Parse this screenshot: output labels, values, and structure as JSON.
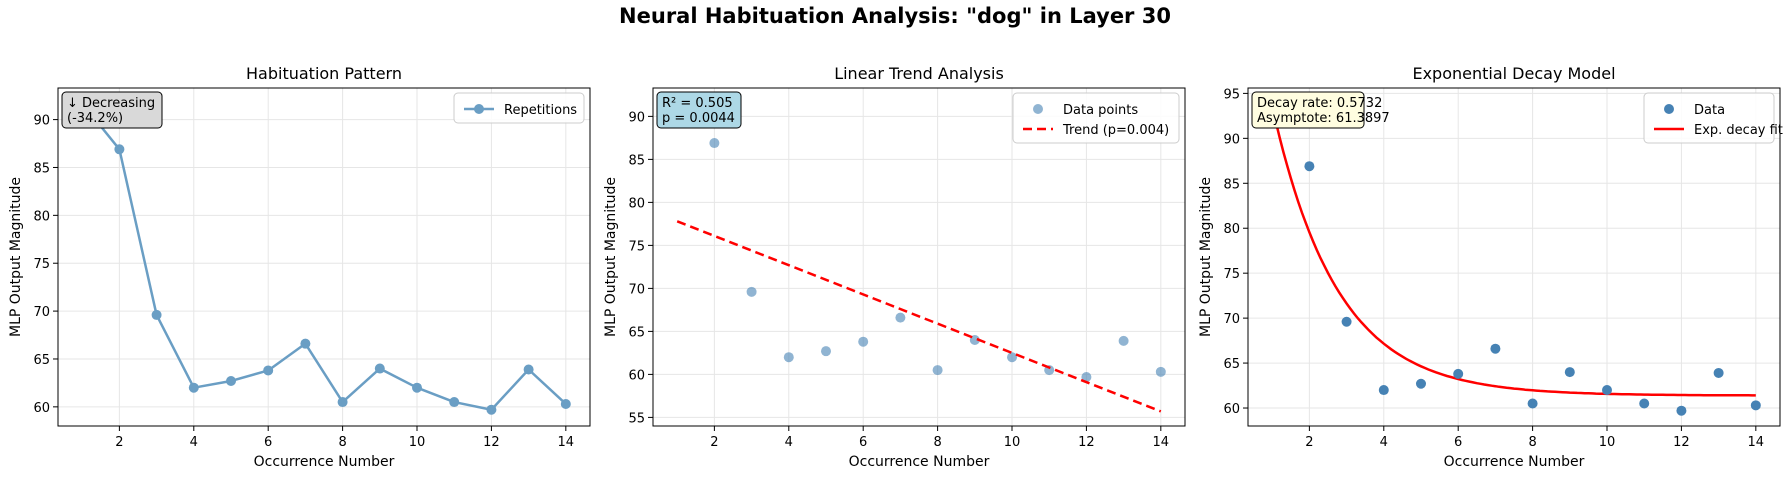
{
  "figure": {
    "title": "Neural Habituation Analysis: \"dog\" in Layer 30"
  },
  "colors": {
    "steelblue": "#4682b4",
    "line_blue": "#6a9ec4",
    "trend_red": "#ff0000",
    "grid": "#e6e6e6",
    "box_gray": "#d9d9d9",
    "box_lightblue": "#add8e6",
    "box_cream": "#fffde0"
  },
  "chart_data": [
    {
      "type": "line",
      "title": "Habituation Pattern",
      "xlabel": "Occurrence Number",
      "ylabel": "MLP Output Magnitude",
      "xlim": [
        0.35,
        14.65
      ],
      "ylim": [
        58.0,
        93.3
      ],
      "xticks": [
        2,
        4,
        6,
        8,
        10,
        12,
        14
      ],
      "yticks": [
        60,
        65,
        70,
        75,
        80,
        85,
        90
      ],
      "grid": true,
      "legend_position": "top-right",
      "series": [
        {
          "name": "Repetitions",
          "x": [
            1,
            2,
            3,
            4,
            5,
            6,
            7,
            8,
            9,
            10,
            11,
            12,
            13,
            14
          ],
          "y": [
            91.7,
            86.9,
            69.6,
            62.0,
            62.7,
            63.8,
            66.6,
            60.5,
            64.0,
            62.0,
            60.5,
            59.7,
            63.9,
            60.3
          ]
        }
      ],
      "annotation": [
        "↓ Decreasing",
        "(-34.2%)"
      ]
    },
    {
      "type": "scatter",
      "title": "Linear Trend Analysis",
      "xlabel": "Occurrence Number",
      "ylabel": "MLP Output Magnitude",
      "xlim": [
        0.35,
        14.65
      ],
      "ylim": [
        54.0,
        93.3
      ],
      "xticks": [
        2,
        4,
        6,
        8,
        10,
        12,
        14
      ],
      "yticks": [
        55,
        60,
        65,
        70,
        75,
        80,
        85,
        90
      ],
      "grid": true,
      "legend_position": "top-right",
      "series": [
        {
          "name": "Data points",
          "x": [
            1,
            2,
            3,
            4,
            5,
            6,
            7,
            8,
            9,
            10,
            11,
            12,
            13,
            14
          ],
          "y": [
            91.7,
            86.9,
            69.6,
            62.0,
            62.7,
            63.8,
            66.6,
            60.5,
            64.0,
            62.0,
            60.5,
            59.7,
            63.9,
            60.3
          ]
        },
        {
          "name": "Trend (p=0.004)",
          "x": [
            1,
            14
          ],
          "y": [
            77.8,
            55.7
          ]
        }
      ],
      "annotation": [
        "R² = 0.505",
        "p = 0.0044"
      ]
    },
    {
      "type": "scatter",
      "title": "Exponential Decay Model",
      "xlabel": "Occurrence Number",
      "ylabel": "MLP Output Magnitude",
      "xlim": [
        0.35,
        14.65
      ],
      "ylim": [
        58.0,
        95.6
      ],
      "xticks": [
        2,
        4,
        6,
        8,
        10,
        12,
        14
      ],
      "yticks": [
        60,
        65,
        70,
        75,
        80,
        85,
        90,
        95
      ],
      "grid": true,
      "legend_position": "top-right",
      "series": [
        {
          "name": "Data",
          "x": [
            1,
            2,
            3,
            4,
            5,
            6,
            7,
            8,
            9,
            10,
            11,
            12,
            13,
            14
          ],
          "y": [
            91.7,
            86.9,
            69.6,
            62.0,
            62.7,
            63.8,
            66.6,
            60.5,
            64.0,
            62.0,
            60.5,
            59.7,
            63.9,
            60.3
          ]
        },
        {
          "name": "Exp. decay fit",
          "model": {
            "asymptote": 61.3897,
            "decay_rate": 0.5732,
            "value_at_x1": 93.6
          }
        }
      ],
      "annotation": [
        "Decay rate: 0.5732",
        "Asymptote: 61.3897"
      ]
    }
  ]
}
